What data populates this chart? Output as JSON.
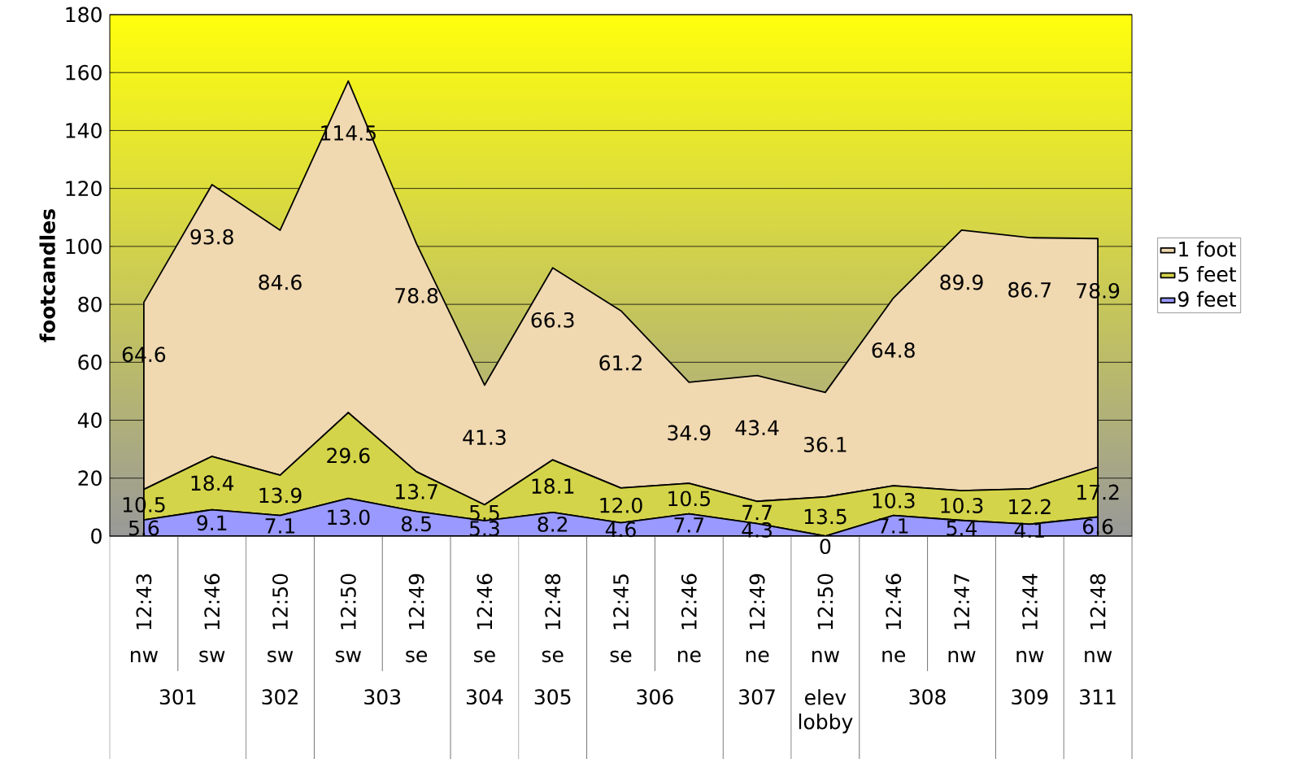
{
  "chart_data": {
    "type": "area",
    "stacked": true,
    "ylabel": "footcandles",
    "categories": [
      "12:43",
      "12:46",
      "12:50",
      "12:50",
      "12:49",
      "12:46",
      "12:48",
      "12:45",
      "12:46",
      "12:49",
      "12:50",
      "12:46",
      "12:47",
      "12:44",
      "12:48"
    ],
    "annotations": [
      "nw",
      "sw",
      "sw",
      "sw",
      "se",
      "se",
      "se",
      "se",
      "ne",
      "ne",
      "nw",
      "ne",
      "nw",
      "nw",
      "nw",
      "301",
      "302",
      "303",
      "304",
      "305",
      "306",
      "307",
      "elev lobby",
      "308",
      "309",
      "311"
    ],
    "series": [
      {
        "name": "9 feet",
        "color": "#9999ff",
        "values": [
          5.6,
          9.1,
          7.1,
          13.0,
          8.5,
          5.3,
          8.2,
          4.6,
          7.7,
          4.3,
          0,
          7.1,
          5.4,
          4.1,
          6.6
        ],
        "value_labels": [
          "5.6",
          "9.1",
          "7.1",
          "13.0",
          "8.5",
          "5.3",
          "8.2",
          "4.6",
          "7.7",
          "4.3",
          "0",
          "7.1",
          "5.4",
          "4.1",
          "6.6"
        ]
      },
      {
        "name": "5 feet",
        "color": "#d4d44a",
        "values": [
          10.5,
          18.4,
          13.9,
          29.6,
          13.7,
          5.5,
          18.1,
          12.0,
          10.5,
          7.7,
          13.5,
          10.3,
          10.3,
          12.2,
          17.2
        ],
        "value_labels": [
          "10.5",
          "18.4",
          "13.9",
          "29.6",
          "13.7",
          "5.5",
          "18.1",
          "12.0",
          "10.5",
          "7.7",
          "13.5",
          "10.3",
          "10.3",
          "12.2",
          "17.2"
        ]
      },
      {
        "name": "1 foot",
        "color": "#f0d8b0",
        "values": [
          64.6,
          93.8,
          84.6,
          114.5,
          78.8,
          41.3,
          66.3,
          61.2,
          34.9,
          43.4,
          36.1,
          64.8,
          89.9,
          86.7,
          78.9
        ],
        "value_labels": [
          "64.6",
          "93.8",
          "84.6",
          "114.5",
          "78.8",
          "41.3",
          "66.3",
          "61.2",
          "34.9",
          "43.4",
          "36.1",
          "64.8",
          "89.9",
          "86.7",
          "78.9"
        ]
      }
    ],
    "ylim": [
      0,
      180
    ],
    "yticks": [
      0,
      20,
      40,
      60,
      80,
      100,
      120,
      140,
      160,
      180
    ],
    "grid": "y",
    "legend": "right"
  }
}
